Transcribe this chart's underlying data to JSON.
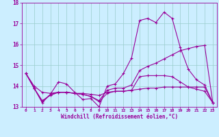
{
  "bg_color": "#cceeff",
  "line_color": "#990099",
  "grid_color": "#99cccc",
  "xlabel": "Windchill (Refroidissement éolien,°C)",
  "xlabel_color": "#990099",
  "tick_color": "#990099",
  "xlim": [
    -0.5,
    23.5
  ],
  "ylim": [
    13,
    18
  ],
  "yticks": [
    13,
    14,
    15,
    16,
    17,
    18
  ],
  "xticks": [
    0,
    1,
    2,
    3,
    4,
    5,
    6,
    7,
    8,
    9,
    10,
    11,
    12,
    13,
    14,
    15,
    16,
    17,
    18,
    19,
    20,
    21,
    22,
    23
  ],
  "series1_y": [
    14.6,
    13.9,
    13.2,
    13.6,
    14.2,
    14.1,
    13.7,
    13.35,
    13.4,
    13.0,
    14.0,
    14.1,
    14.6,
    15.35,
    17.15,
    17.25,
    17.05,
    17.55,
    17.25,
    15.85,
    14.8,
    14.3,
    14.05,
    13.2
  ],
  "series2_y": [
    14.6,
    14.0,
    13.7,
    13.65,
    13.7,
    13.7,
    13.65,
    13.65,
    13.6,
    13.55,
    13.7,
    13.75,
    13.75,
    13.8,
    13.85,
    13.9,
    13.9,
    13.95,
    13.95,
    13.95,
    13.95,
    13.95,
    13.95,
    13.2
  ],
  "series3_y": [
    14.6,
    13.9,
    13.25,
    13.6,
    13.7,
    13.7,
    13.65,
    13.6,
    13.5,
    13.25,
    13.65,
    13.75,
    13.75,
    13.8,
    14.45,
    14.5,
    14.5,
    14.5,
    14.45,
    14.2,
    13.95,
    13.85,
    13.75,
    13.2
  ],
  "series4_y": [
    14.6,
    13.9,
    13.3,
    13.55,
    13.7,
    13.7,
    13.65,
    13.6,
    13.5,
    13.3,
    13.8,
    13.9,
    13.9,
    14.05,
    14.75,
    14.95,
    15.1,
    15.3,
    15.5,
    15.7,
    15.8,
    15.9,
    15.95,
    13.2
  ]
}
